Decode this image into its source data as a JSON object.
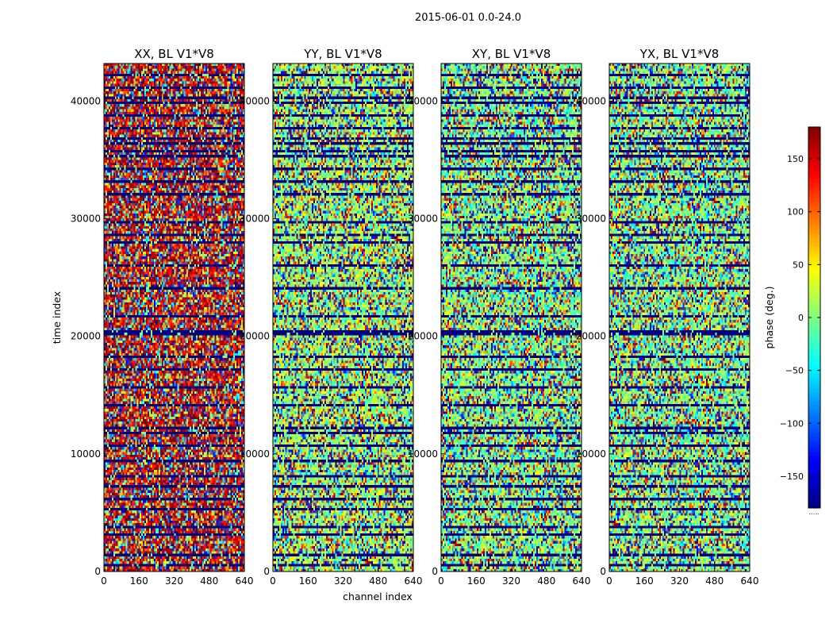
{
  "chart_data": {
    "type": "heatmap",
    "suptitle": "2015-06-01 0.0-24.0",
    "xlabel": "channel index",
    "ylabel": "time index",
    "colorbar_label": "phase (deg.)",
    "colorbar_under_label": "......",
    "colormap": "jet",
    "vmin": -180,
    "vmax": 180,
    "colorbar_ticks": [
      150,
      100,
      50,
      0,
      -50,
      -100,
      -150
    ],
    "colorbar_tick_labels": [
      "150",
      "100",
      "50",
      "0",
      "−50",
      "−100",
      "−150"
    ],
    "xlim": [
      0,
      640
    ],
    "ylim": [
      0,
      43200
    ],
    "x_ticks": [
      0,
      160,
      320,
      480,
      640
    ],
    "y_ticks": [
      0,
      10000,
      20000,
      30000,
      40000
    ],
    "panels": [
      {
        "title": "XX, BL V1*V8",
        "dominant_phase": 150
      },
      {
        "title": "YY, BL V1*V8",
        "dominant_phase": 10
      },
      {
        "title": "XY, BL V1*V8",
        "dominant_phase": 0
      },
      {
        "title": "YX, BL V1*V8",
        "dominant_phase": 0
      }
    ],
    "dark_band_rows": [
      700,
      1500,
      3300,
      3900,
      5400,
      6300,
      7300,
      8300,
      9400,
      10800,
      11800,
      12400,
      14200,
      15700,
      17200,
      18400,
      20200,
      20600,
      21800,
      24200,
      26200,
      28100,
      28700,
      29800,
      32200,
      33200,
      34400,
      35400,
      35900,
      36400,
      37000,
      37900,
      38900,
      39900,
      40500,
      41300,
      42300
    ],
    "dark_band_phase": -180,
    "noise_fraction": 0.55
  }
}
